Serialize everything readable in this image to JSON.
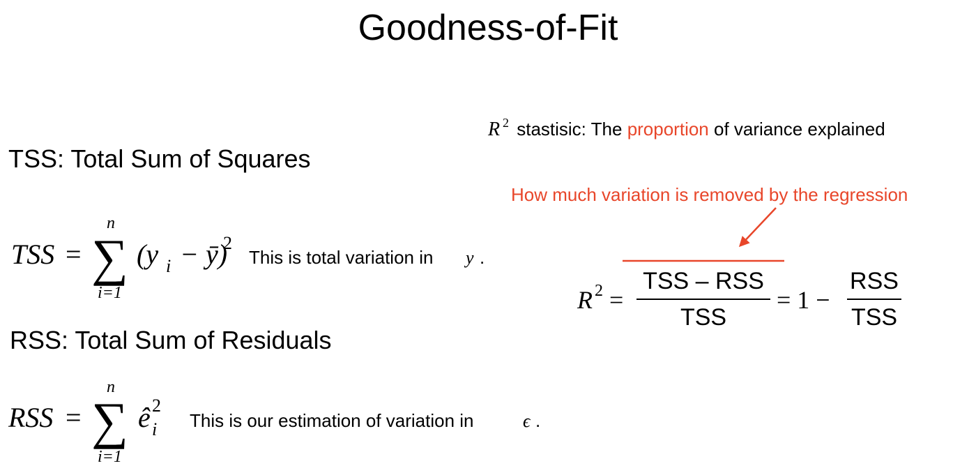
{
  "title": "Goodness-of-Fit",
  "tss": {
    "heading": "TSS: Total Sum of Squares",
    "formula": {
      "lhs": "TSS",
      "eq": "=",
      "sum": "∑",
      "upper": "n",
      "lower": "i=1",
      "open": "(y",
      "sub": "i",
      "rest": "− ȳ)",
      "power": "2"
    },
    "note": {
      "text": "This is total variation in",
      "symbol": "y",
      "end": "."
    }
  },
  "rss": {
    "heading": "RSS: Total Sum of Residuals",
    "formula": {
      "lhs": "RSS",
      "eq": "=",
      "sum": "∑",
      "upper": "n",
      "lower": "i=1",
      "term": "ê",
      "power": "2",
      "sub": "i"
    },
    "note": {
      "text": "This is our estimation of variation in",
      "symbol": "ϵ",
      "end": "."
    }
  },
  "r2": {
    "statement": {
      "symbol": "R",
      "power": "2",
      "before": " stastisic: The ",
      "highlight": "proportion",
      "after": " of variance explained"
    },
    "annotation": "How much variation is removed by the regression",
    "formula": {
      "lhs": "R",
      "power": "2",
      "eq": "=",
      "numerator": "TSS – RSS",
      "denominator": "TSS",
      "middle": "= 1 −",
      "numerator2": "RSS",
      "denominator2": "TSS"
    }
  }
}
